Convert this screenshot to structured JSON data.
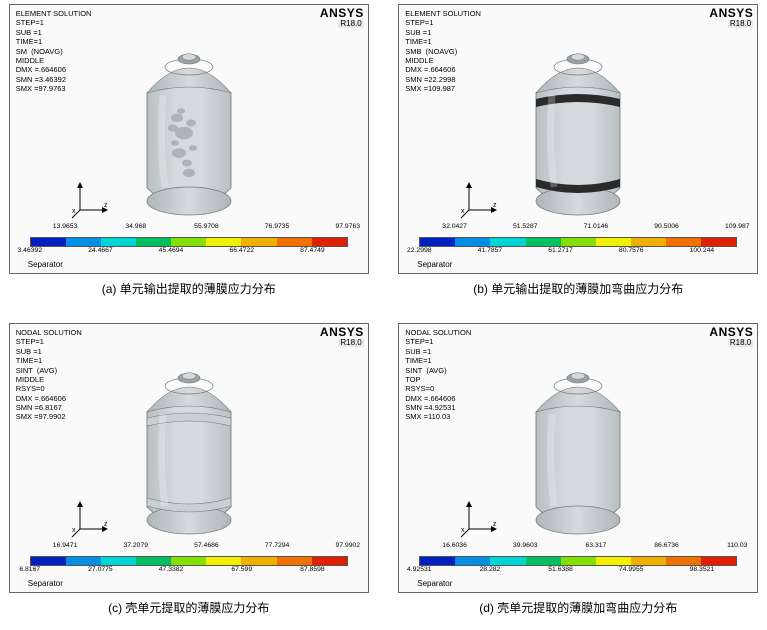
{
  "ansys": {
    "name": "ANSYS",
    "version": "R18.0"
  },
  "colorbar_colors": [
    "#0020c0",
    "#008fe5",
    "#00d6d6",
    "#00c060",
    "#84e000",
    "#f0f000",
    "#f0b000",
    "#f07000",
    "#e02000"
  ],
  "panels": [
    {
      "id": "a",
      "caption": "(a) 单元输出提取的薄膜应力分布",
      "meta": "ELEMENT SOLUTION\nSTEP=1\nSUB =1\nTIME=1\nSM  (NOAVG)\nMIDDLE\nDMX =.664606\nSMN =3.46392\nSMX =97.9763",
      "ticks_bottom": [
        "3.46392",
        "24.4667",
        "45.4694",
        "66.4722",
        "87.4749"
      ],
      "ticks_top": [
        "13.9653",
        "34.968",
        "55.9708",
        "76.9735",
        "97.9763"
      ],
      "sep": "Separator",
      "band_top": false,
      "band_bot": false,
      "speckle": true
    },
    {
      "id": "b",
      "caption": "(b) 单元输出提取的薄膜加弯曲应力分布",
      "meta": "ELEMENT SOLUTION\nSTEP=1\nSUB =1\nTIME=1\nSMB  (NOAVG)\nMIDDLE\nDMX =.664606\nSMN =22.2998\nSMX =109.987",
      "ticks_bottom": [
        "22.2998",
        "41.7857",
        "61.2717",
        "80.7576",
        "100.244"
      ],
      "ticks_top": [
        "32.0427",
        "51.5287",
        "71.0146",
        "90.5006",
        "109.987"
      ],
      "sep": "Separator",
      "band_top": true,
      "band_bot": true,
      "speckle": false,
      "dark_band": true
    },
    {
      "id": "c",
      "caption": "(c) 壳单元提取的薄膜应力分布",
      "meta": "NODAL SOLUTION\nSTEP=1\nSUB =1\nTIME=1\nSINT  (AVG)\nMIDDLE\nRSYS=0\nDMX =.664606\nSMN =6.8167\nSMX =97.9902",
      "ticks_bottom": [
        "6.8167",
        "27.0775",
        "47.3382",
        "67.599",
        "87.8598"
      ],
      "ticks_top": [
        "16.9471",
        "37.2079",
        "57.4686",
        "77.7294",
        "97.9902"
      ],
      "sep": "Separator",
      "band_top": true,
      "band_bot": true,
      "speckle": false,
      "dark_band": false
    },
    {
      "id": "d",
      "caption": "(d) 壳单元提取的薄膜加弯曲应力分布",
      "meta": "NODAL SOLUTION\nSTEP=1\nSUB =1\nTIME=1\nSINT  (AVG)\nTOP\nRSYS=0\nDMX =.664606\nSMN =4.92531\nSMX =110.03",
      "ticks_bottom": [
        "4.92531",
        "28.282",
        "51.6388",
        "74.9955",
        "98.3521"
      ],
      "ticks_top": [
        "16.6036",
        "39.9603",
        "63.317",
        "86.6736",
        "110.03"
      ],
      "sep": "Separator",
      "band_top": false,
      "band_bot": false,
      "speckle": false
    }
  ],
  "triad_labels": {
    "x": "x",
    "y": "",
    "z": "z"
  },
  "vessel_colors": {
    "body": "#b8c0c4",
    "body_hi": "#d4dadd",
    "dome": "#aeb6ba",
    "cap": "#9aa2a6",
    "band_light": "#c8d0d4",
    "band_dark": "#2a2a2a",
    "speckle": "#8e9498",
    "edge": "#6e7478"
  }
}
